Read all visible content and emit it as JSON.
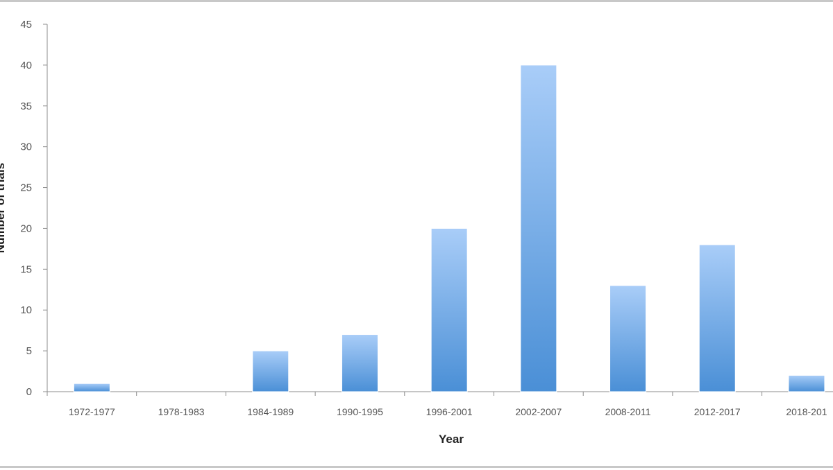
{
  "chart_data": {
    "type": "bar",
    "categories": [
      "1972-1977",
      "1978-1983",
      "1984-1989",
      "1990-1995",
      "1996-2001",
      "2002-2007",
      "2008-2011",
      "2012-2017",
      "2018-201"
    ],
    "values": [
      1,
      0,
      5,
      7,
      20,
      40,
      13,
      18,
      2
    ],
    "xlabel": "Year",
    "ylabel": "Number of trials",
    "ylim": [
      0,
      45
    ],
    "yticks": [
      0,
      5,
      10,
      15,
      20,
      25,
      30,
      35,
      40,
      45
    ],
    "grid": false,
    "legend": "none",
    "bar_color_top": "#a9cdf8",
    "bar_color_bottom": "#4a8fd6"
  }
}
